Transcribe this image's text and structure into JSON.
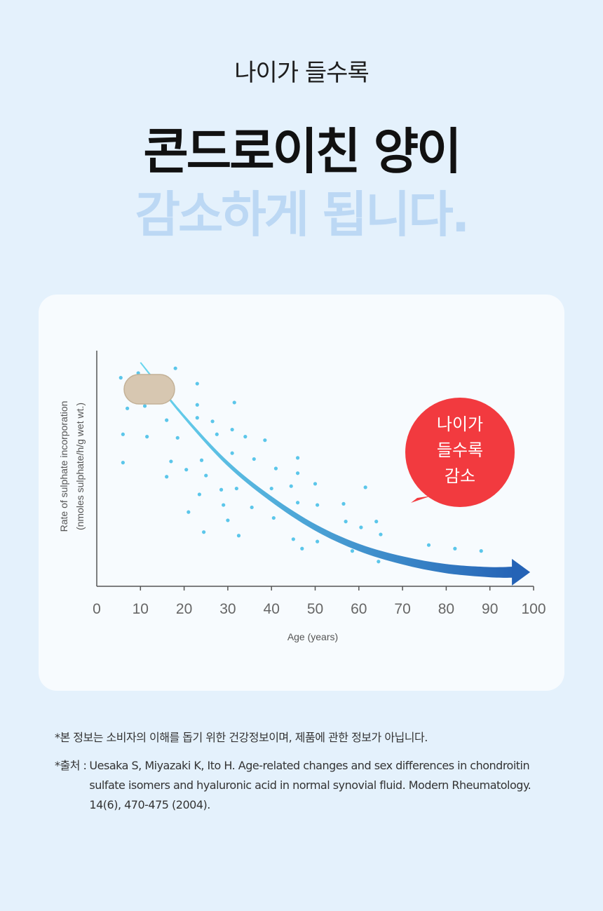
{
  "header": {
    "kicker": "나이가 들수록",
    "title_line1": "콘드로이친 양이",
    "title_line2": "감소하게 됩니다."
  },
  "colors": {
    "background": "#e4f1fc",
    "card": "#f7fbfe",
    "dots": "#5bc6ea",
    "curve_start": "#6ad7ef",
    "curve_end": "#2563b6",
    "bubble": "#f23a3f",
    "pill": "#d7c7b1",
    "title_faded": "#bcd8f4"
  },
  "chart_data": {
    "type": "scatter",
    "xlabel": "Age (years)",
    "ylabel": "Rate of sulphate incorporation",
    "ylabel_unit": "(nmoles sulphate/h/g wet wt.)",
    "xlim": [
      0,
      100
    ],
    "x_ticks": [
      0,
      10,
      20,
      30,
      40,
      50,
      60,
      70,
      80,
      90,
      100
    ],
    "y_ticks_shown": false,
    "grid": false,
    "annotation": {
      "line1": "나이가",
      "line2": "들수록",
      "line3": "감소",
      "icon": "speech-bubble"
    },
    "trend_icon": "capsule-pill",
    "points": [
      [
        5.5,
        0.885
      ],
      [
        6,
        0.645
      ],
      [
        6,
        0.525
      ],
      [
        7,
        0.755
      ],
      [
        9.5,
        0.905
      ],
      [
        11,
        0.765
      ],
      [
        11.5,
        0.635
      ],
      [
        16,
        0.705
      ],
      [
        16,
        0.465
      ],
      [
        17,
        0.53
      ],
      [
        18,
        0.925
      ],
      [
        18.5,
        0.63
      ],
      [
        20.5,
        0.495
      ],
      [
        21,
        0.315
      ],
      [
        23,
        0.86
      ],
      [
        23,
        0.77
      ],
      [
        23,
        0.715
      ],
      [
        23.5,
        0.39
      ],
      [
        24,
        0.535
      ],
      [
        24.5,
        0.23
      ],
      [
        25,
        0.47
      ],
      [
        26.5,
        0.7
      ],
      [
        27.5,
        0.645
      ],
      [
        28.5,
        0.41
      ],
      [
        29,
        0.345
      ],
      [
        30,
        0.28
      ],
      [
        31,
        0.665
      ],
      [
        31,
        0.565
      ],
      [
        31.5,
        0.78
      ],
      [
        32,
        0.415
      ],
      [
        32.5,
        0.215
      ],
      [
        34,
        0.635
      ],
      [
        35.5,
        0.335
      ],
      [
        36,
        0.54
      ],
      [
        38.5,
        0.62
      ],
      [
        40,
        0.415
      ],
      [
        40.5,
        0.29
      ],
      [
        41,
        0.5
      ],
      [
        44.5,
        0.425
      ],
      [
        45,
        0.2
      ],
      [
        46,
        0.48
      ],
      [
        46,
        0.545
      ],
      [
        46,
        0.355
      ],
      [
        47,
        0.16
      ],
      [
        50,
        0.435
      ],
      [
        50.5,
        0.19
      ],
      [
        50.5,
        0.345
      ],
      [
        56.5,
        0.35
      ],
      [
        57,
        0.275
      ],
      [
        58.5,
        0.15
      ],
      [
        60.5,
        0.25
      ],
      [
        61.5,
        0.42
      ],
      [
        64,
        0.275
      ],
      [
        64.5,
        0.105
      ],
      [
        65,
        0.22
      ],
      [
        76,
        0.175
      ],
      [
        78,
        0.075
      ],
      [
        82,
        0.16
      ],
      [
        88,
        0.15
      ]
    ],
    "trend": [
      [
        10,
        0.95
      ],
      [
        20,
        0.72
      ],
      [
        30,
        0.52
      ],
      [
        40,
        0.37
      ],
      [
        50,
        0.25
      ],
      [
        60,
        0.165
      ],
      [
        70,
        0.11
      ],
      [
        80,
        0.075
      ],
      [
        90,
        0.06
      ],
      [
        96,
        0.06
      ]
    ]
  },
  "notes": {
    "disclaimer": "*본 정보는 소비자의 이해를 돕기 위한 건강정보이며, 제품에 관한 정보가 아닙니다.",
    "source_label": "*출처 :",
    "source_text": "Uesaka S, Miyazaki K, Ito H. Age-related changes and sex differences in chondroitin sulfate isomers and hyaluronic acid in normal synovial fluid.  Modern Rheumatology. 14(6), 470-475 (2004)."
  }
}
